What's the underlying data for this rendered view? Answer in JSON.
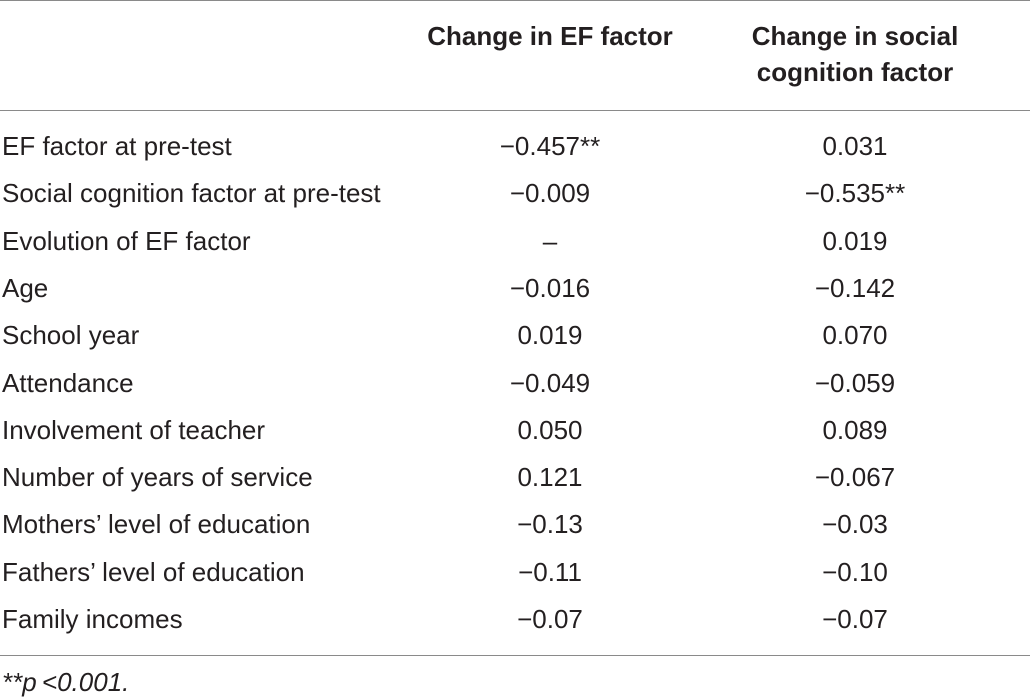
{
  "table": {
    "headers": {
      "label": "",
      "ef": "Change in EF factor",
      "sc_line1": "Change in social",
      "sc_line2": "cognition factor"
    },
    "rows": [
      {
        "label": "EF factor at pre-test",
        "ef": "−0.457**",
        "sc": "0.031"
      },
      {
        "label": "Social cognition factor at pre-test",
        "ef": "−0.009",
        "sc": "−0.535**"
      },
      {
        "label": "Evolution of EF factor",
        "ef": "–",
        "sc": "0.019"
      },
      {
        "label": "Age",
        "ef": "−0.016",
        "sc": "−0.142"
      },
      {
        "label": "School year",
        "ef": "0.019",
        "sc": "0.070"
      },
      {
        "label": "Attendance",
        "ef": "−0.049",
        "sc": "−0.059"
      },
      {
        "label": "Involvement of teacher",
        "ef": "0.050",
        "sc": "0.089"
      },
      {
        "label": "Number of years of service",
        "ef": "0.121",
        "sc": "−0.067"
      },
      {
        "label": "Mothers’ level of education",
        "ef": "−0.13",
        "sc": "−0.03"
      },
      {
        "label": "Fathers’ level of education",
        "ef": "−0.11",
        "sc": "−0.10"
      },
      {
        "label": "Family incomes",
        "ef": "−0.07",
        "sc": "−0.07"
      }
    ],
    "footnote": "**p <0.001."
  }
}
